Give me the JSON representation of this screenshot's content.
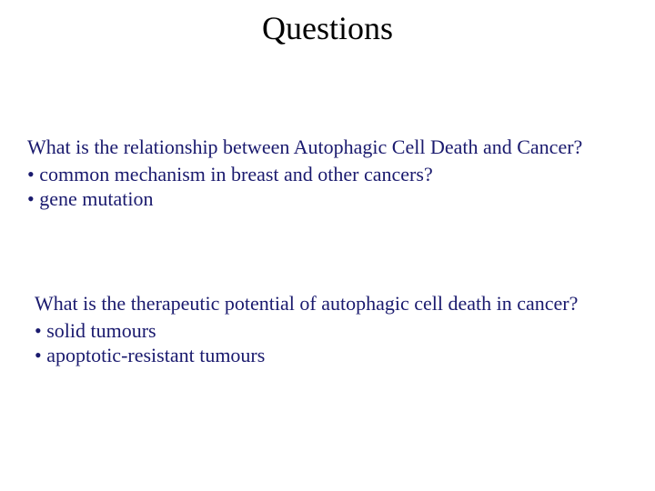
{
  "title": "Questions",
  "title_fontsize": 36,
  "title_color": "#000000",
  "body_color": "#1a1a6e",
  "body_fontsize": 22,
  "background_color": "#ffffff",
  "slide_width": 720,
  "slide_height": 540,
  "block1": {
    "question": "What is the relationship between Autophagic Cell Death and Cancer?",
    "bullets": [
      "• common mechanism in breast and other cancers?",
      "• gene mutation"
    ]
  },
  "block2": {
    "question": "What is the therapeutic potential of autophagic cell death in cancer?",
    "bullets": [
      "• solid tumours",
      "• apoptotic-resistant tumours"
    ]
  }
}
